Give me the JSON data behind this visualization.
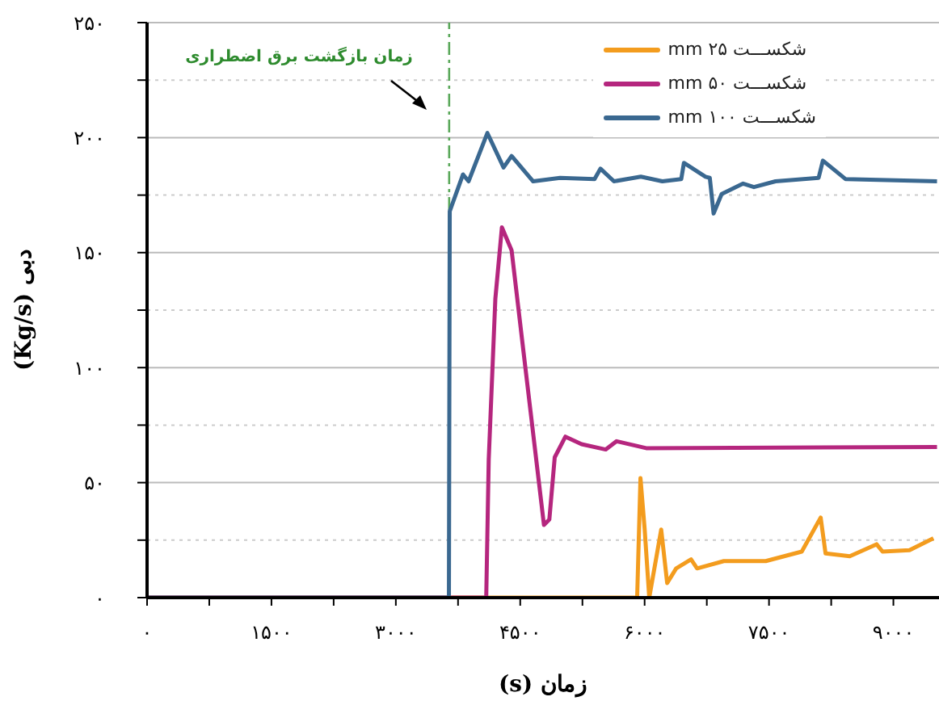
{
  "chart_data": {
    "type": "line",
    "xlabel": "زمان (s)",
    "ylabel": "دبی (Kg/s)",
    "annotations": [
      "زمان بازگشت برق اضطراری"
    ],
    "xlim": [
      0,
      9550
    ],
    "xticks": [
      {
        "value": 0,
        "label": "۰"
      },
      {
        "value": 750,
        "label": null
      },
      {
        "value": 1500,
        "label": "۱۵۰۰"
      },
      {
        "value": 2250,
        "label": null
      },
      {
        "value": 3000,
        "label": "۳۰۰۰"
      },
      {
        "value": 3750,
        "label": null
      },
      {
        "value": 4500,
        "label": "۴۵۰۰"
      },
      {
        "value": 5250,
        "label": null
      },
      {
        "value": 6000,
        "label": "۶۰۰۰"
      },
      {
        "value": 6750,
        "label": null
      },
      {
        "value": 7500,
        "label": "۷۵۰۰"
      },
      {
        "value": 8250,
        "label": null
      },
      {
        "value": 9000,
        "label": "۹۰۰۰"
      }
    ],
    "ylim": [
      0,
      250
    ],
    "yticks": [
      {
        "value": 0,
        "label": "۰"
      },
      {
        "value": 25,
        "label": null
      },
      {
        "value": 50,
        "label": "۵۰"
      },
      {
        "value": 75,
        "label": null
      },
      {
        "value": 100,
        "label": "۱۰۰"
      },
      {
        "value": 125,
        "label": null
      },
      {
        "value": 150,
        "label": "۱۵۰"
      },
      {
        "value": 175,
        "label": null
      },
      {
        "value": 200,
        "label": "۲۰۰"
      },
      {
        "value": 225,
        "label": null
      },
      {
        "value": 250,
        "label": "۲۵۰"
      }
    ],
    "grid": "y",
    "legend": "top right",
    "marker": "none",
    "line_style": "solid",
    "ref_lines": [
      {
        "axis": "x",
        "value": 3643,
        "color": "#5aa85a",
        "line_style": "dashed"
      }
    ],
    "series": [
      {
        "name": "شکســـت ۲۵ mm",
        "color": "#f39c1e",
        "x": [
          0,
          5910,
          5950,
          6000,
          6056,
          6200,
          6272,
          6380,
          6560,
          6633,
          6955,
          7461,
          7895,
          8123,
          8182,
          8474,
          8797,
          8869,
          9194,
          9483
        ],
        "values": [
          0,
          0,
          52,
          30,
          0,
          29.6,
          6.3,
          12.7,
          16.6,
          12.7,
          15.9,
          15.9,
          20,
          34.8,
          19.2,
          18,
          23.2,
          20,
          20.6,
          25.8
        ]
      },
      {
        "name": "شکســـت ۵۰ mm",
        "color": "#b5267e",
        "x": [
          0,
          4090,
          4120,
          4200,
          4279,
          4396,
          4526,
          4786,
          4851,
          4916,
          5045,
          5240,
          5532,
          5662,
          6019,
          9526
        ],
        "values": [
          0,
          0,
          60,
          130,
          161,
          151,
          111,
          31.6,
          34,
          61,
          70,
          66.7,
          64.4,
          68,
          65,
          65.5
        ]
      },
      {
        "name": "شکســـت ۱۰۰ mm",
        "color": "#3a6890",
        "x": [
          0,
          3640,
          3650,
          3810,
          3877,
          4104,
          4299,
          4396,
          4656,
          4981,
          5396,
          5468,
          5630,
          5955,
          6214,
          6442,
          6474,
          6734,
          6786,
          6832,
          6929,
          7188,
          7318,
          7578,
          8098,
          8150,
          8422,
          9526
        ],
        "values": [
          0,
          0,
          168,
          184,
          181,
          202,
          187,
          192,
          181,
          182.5,
          182,
          186.5,
          181,
          183,
          181,
          182,
          189,
          183,
          182.5,
          167,
          175.5,
          180,
          178.5,
          181,
          182.5,
          190,
          182,
          181
        ]
      }
    ]
  }
}
